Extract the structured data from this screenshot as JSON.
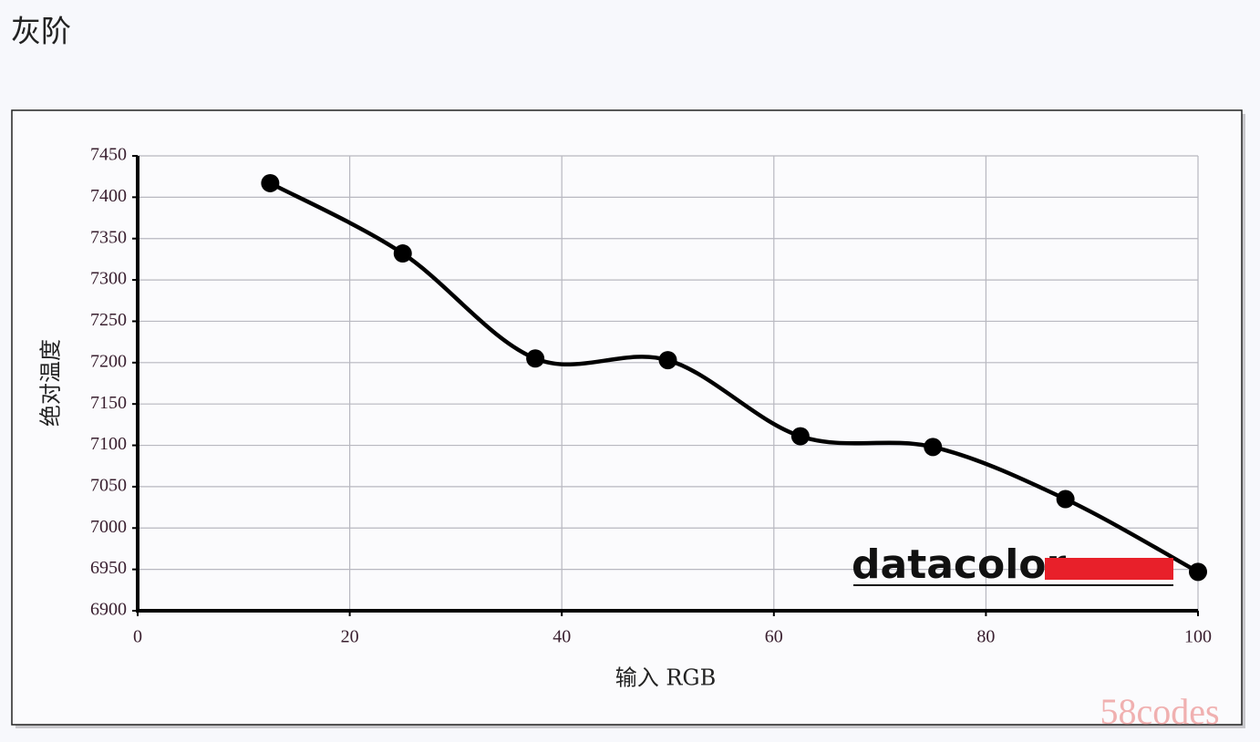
{
  "chart_data": {
    "type": "line",
    "title": "灰阶",
    "x_label": "输入 RGB",
    "y_label": "绝对温度",
    "x": [
      12.5,
      25,
      37.5,
      50,
      62.5,
      75,
      87.5,
      100
    ],
    "values": [
      7417,
      7332,
      7205,
      7203,
      7111,
      7098,
      7035,
      6947
    ],
    "color": "#000000",
    "xlim": [
      0,
      100
    ],
    "xticks": [
      0,
      20,
      40,
      60,
      80,
      100
    ],
    "ylim": [
      6900,
      7450
    ],
    "yticks": [
      6900,
      6950,
      7000,
      7050,
      7100,
      7150,
      7200,
      7250,
      7300,
      7350,
      7400,
      7450
    ],
    "grid": true,
    "logo": "datacolor",
    "watermark": "58codes"
  }
}
